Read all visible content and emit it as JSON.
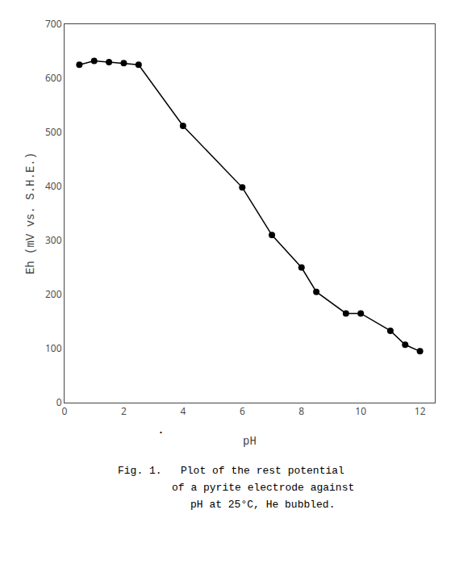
{
  "chart_data": {
    "type": "line",
    "x": [
      0.5,
      1.0,
      1.5,
      2.0,
      2.5,
      4.0,
      6.0,
      7.0,
      8.0,
      8.5,
      9.5,
      10.0,
      11.0,
      11.5,
      12.0
    ],
    "values": [
      625,
      632,
      630,
      628,
      625,
      512,
      398,
      310,
      250,
      205,
      165,
      165,
      133,
      107,
      95
    ],
    "color": "#000000",
    "marker": "circle",
    "xlabel": "pH",
    "ylabel": "Eh (mV vs. S.H.E.)",
    "xlim": [
      0,
      12.5
    ],
    "ylim": [
      0,
      700
    ],
    "xticks": [
      0,
      2,
      4,
      6,
      8,
      10,
      12
    ],
    "yticks": [
      0,
      100,
      200,
      300,
      400,
      500,
      600,
      700
    ],
    "grid": false,
    "annotations": [
      "Fig. 1.   Plot of the rest potential",
      "          of a pyrite electrode against",
      "          pH at 25°C, He bubbled.",
      "•"
    ]
  }
}
